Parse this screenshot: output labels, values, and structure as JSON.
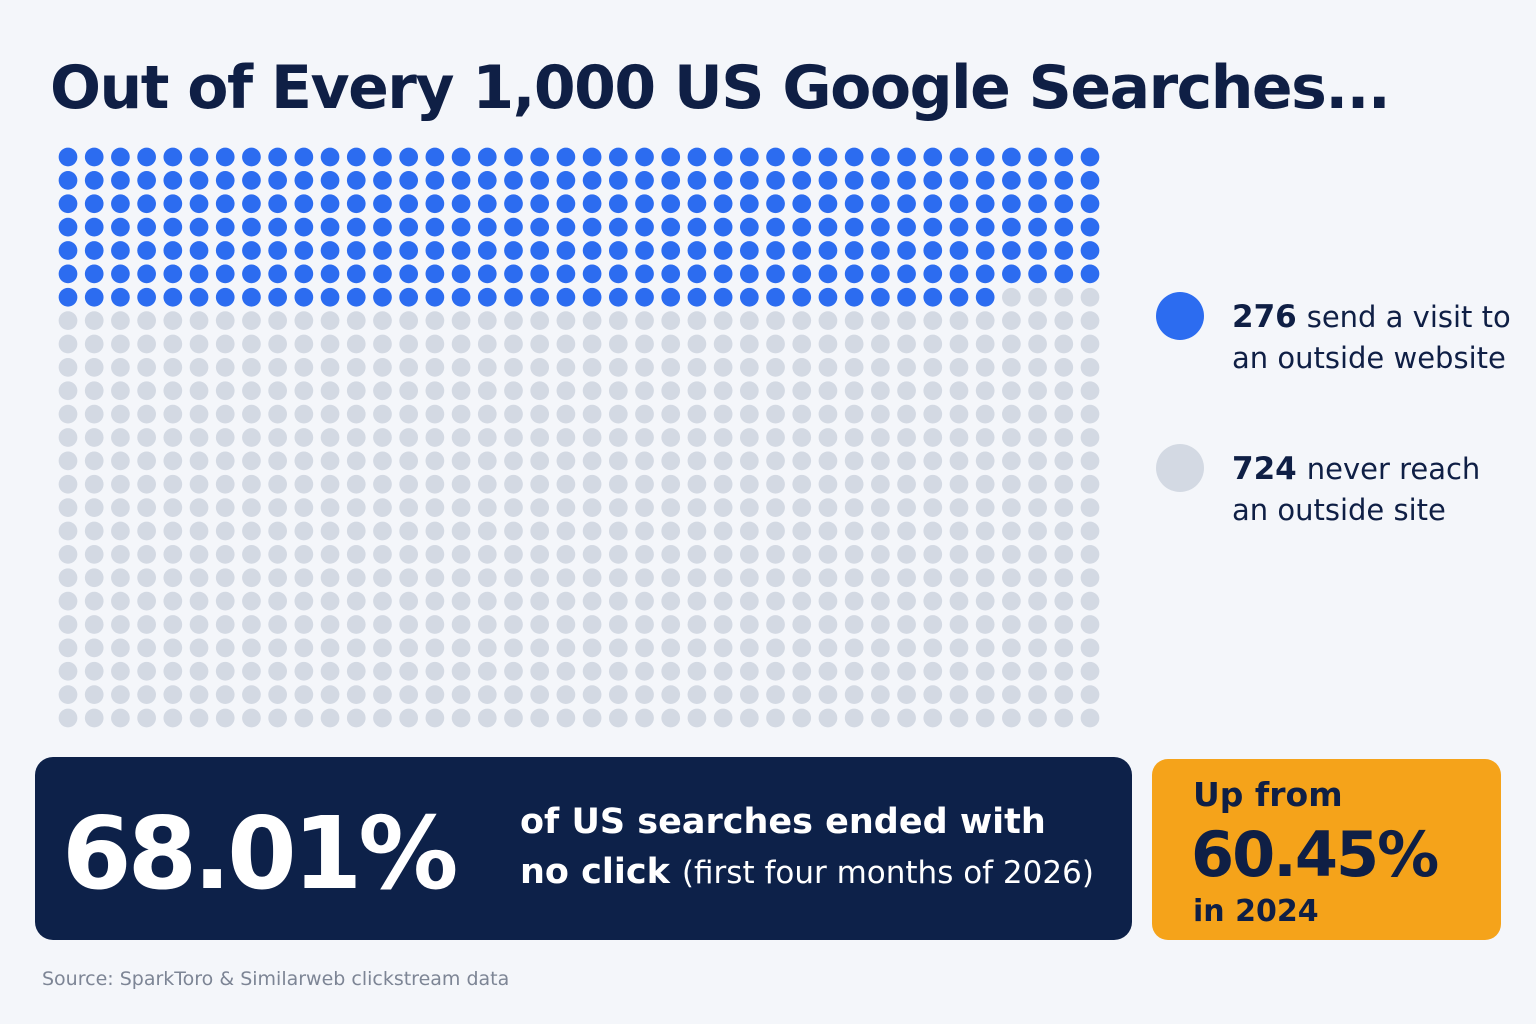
{
  "chart_data": {
    "type": "waffle",
    "title": "Out of Every 1,000 US Google Searches...",
    "series": [
      {
        "value": 276,
        "label": [
          "send a visit to",
          "an outside website"
        ],
        "color": "#2c6cf0"
      },
      {
        "value": 724,
        "label": [
          "never reach",
          "an outside site"
        ],
        "color": "#d3d9e3"
      }
    ],
    "callout": {
      "stat": "68.01%",
      "lines": [
        "of US searches ended with",
        "no click",
        "(first four months of 2026)"
      ]
    },
    "comparison": {
      "lead": "Up from",
      "stat": "60.45%",
      "tail": "in 2024"
    },
    "source": "Source: SparkToro & Similarweb clickstream data"
  }
}
